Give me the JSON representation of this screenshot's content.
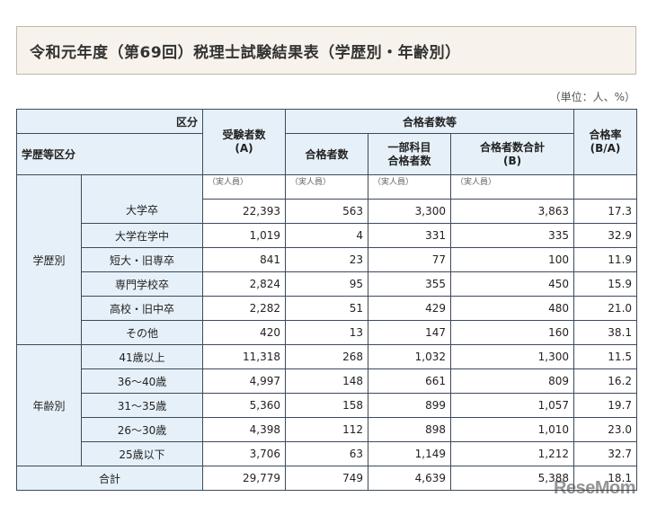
{
  "title": "令和元年度（第69回）税理士試験結果表（学歴別・年齢別）",
  "unit": "（単位：人、%）",
  "header": {
    "kubun": "区分",
    "gakureki_kubun": "学歴等区分",
    "juken_line1": "受験者数",
    "juken_line2": "(A)",
    "goukaku_group": "合格者数等",
    "goukaku": "合格者数",
    "ichibu_line1": "一部科目",
    "ichibu_line2": "合格者数",
    "goukei_line1": "合格者数合計",
    "goukei_line2": "(B)",
    "rate_line1": "合格率",
    "rate_line2": "(B/A)"
  },
  "note_label": "（実人員）",
  "groups": [
    {
      "label": "学歴別",
      "rows": [
        {
          "name": "大学卒",
          "a": "22,393",
          "pass": "563",
          "partial": "3,300",
          "total": "3,863",
          "rate": "17.3"
        },
        {
          "name": "大学在学中",
          "a": "1,019",
          "pass": "4",
          "partial": "331",
          "total": "335",
          "rate": "32.9"
        },
        {
          "name": "短大・旧専卒",
          "a": "841",
          "pass": "23",
          "partial": "77",
          "total": "100",
          "rate": "11.9"
        },
        {
          "name": "専門学校卒",
          "a": "2,824",
          "pass": "95",
          "partial": "355",
          "total": "450",
          "rate": "15.9"
        },
        {
          "name": "高校・旧中卒",
          "a": "2,282",
          "pass": "51",
          "partial": "429",
          "total": "480",
          "rate": "21.0"
        },
        {
          "name": "その他",
          "a": "420",
          "pass": "13",
          "partial": "147",
          "total": "160",
          "rate": "38.1"
        }
      ]
    },
    {
      "label": "年齢別",
      "rows": [
        {
          "name": "41歳以上",
          "a": "11,318",
          "pass": "268",
          "partial": "1,032",
          "total": "1,300",
          "rate": "11.5"
        },
        {
          "name": "36〜40歳",
          "a": "4,997",
          "pass": "148",
          "partial": "661",
          "total": "809",
          "rate": "16.2"
        },
        {
          "name": "31〜35歳",
          "a": "5,360",
          "pass": "158",
          "partial": "899",
          "total": "1,057",
          "rate": "19.7"
        },
        {
          "name": "26〜30歳",
          "a": "4,398",
          "pass": "112",
          "partial": "898",
          "total": "1,010",
          "rate": "23.0"
        },
        {
          "name": "25歳以下",
          "a": "3,706",
          "pass": "63",
          "partial": "1,149",
          "total": "1,212",
          "rate": "32.7"
        }
      ]
    }
  ],
  "total": {
    "name": "合計",
    "a": "29,779",
    "pass": "749",
    "partial": "4,639",
    "total": "5,388",
    "rate": "18.1"
  },
  "watermark": "ReseMom"
}
